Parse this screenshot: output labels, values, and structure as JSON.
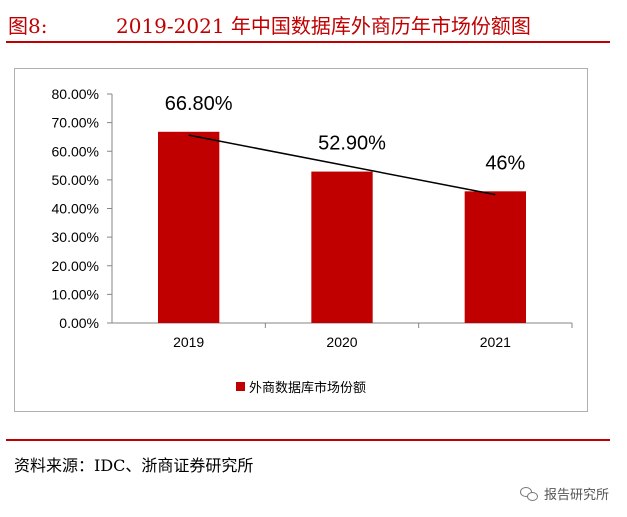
{
  "figure": {
    "number": "图8:",
    "title": "2019-2021 年中国数据库外商历年市场份额图",
    "source": "资料来源：IDC、浙商证券研究所",
    "watermark": "报告研究所",
    "accent_color": "#c00000"
  },
  "chart_data": {
    "type": "bar",
    "categories": [
      "2019",
      "2020",
      "2021"
    ],
    "series": [
      {
        "name": "外商数据库市场份额",
        "values": [
          66.8,
          52.9,
          46
        ],
        "color": "#c00000"
      }
    ],
    "data_labels": [
      "66.80%",
      "52.90%",
      "46%"
    ],
    "trendline": true,
    "trendline_color": "#000000",
    "yticks": [
      "0.00%",
      "10.00%",
      "20.00%",
      "30.00%",
      "40.00%",
      "50.00%",
      "60.00%",
      "70.00%",
      "80.00%"
    ],
    "ylim": [
      0,
      80
    ],
    "ystep": 10,
    "xlabel": "",
    "ylabel": "",
    "grid": false,
    "legend_position": "bottom"
  }
}
